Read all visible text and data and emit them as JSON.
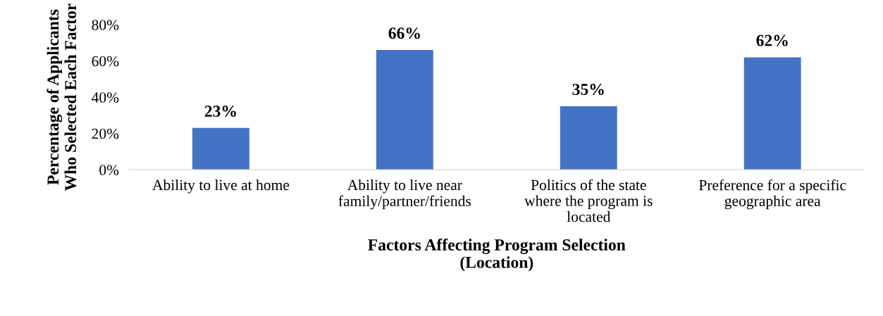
{
  "chart_data": {
    "type": "bar",
    "xlabel": "Factors Affecting Program Selection\n(Location)",
    "ylabel": "Percentage of Applicants\nWho Selected Each Factor",
    "categories": [
      "Ability to live at home",
      "Ability to live near\nfamily/partner/friends",
      "Politics of the state\nwhere the program is\nlocated",
      "Preference for a specific\ngeographic area"
    ],
    "values": [
      23,
      66,
      35,
      62
    ],
    "value_labels": [
      "23%",
      "66%",
      "35%",
      "62%"
    ],
    "color": "#4472c4",
    "ylim": [
      0,
      80
    ],
    "yticks": [
      {
        "value": 0,
        "label": "0%"
      },
      {
        "value": 20,
        "label": "20%"
      },
      {
        "value": 40,
        "label": "40%"
      },
      {
        "value": 60,
        "label": "60%"
      },
      {
        "value": 80,
        "label": "80%"
      }
    ],
    "grid": false,
    "legend": false
  }
}
